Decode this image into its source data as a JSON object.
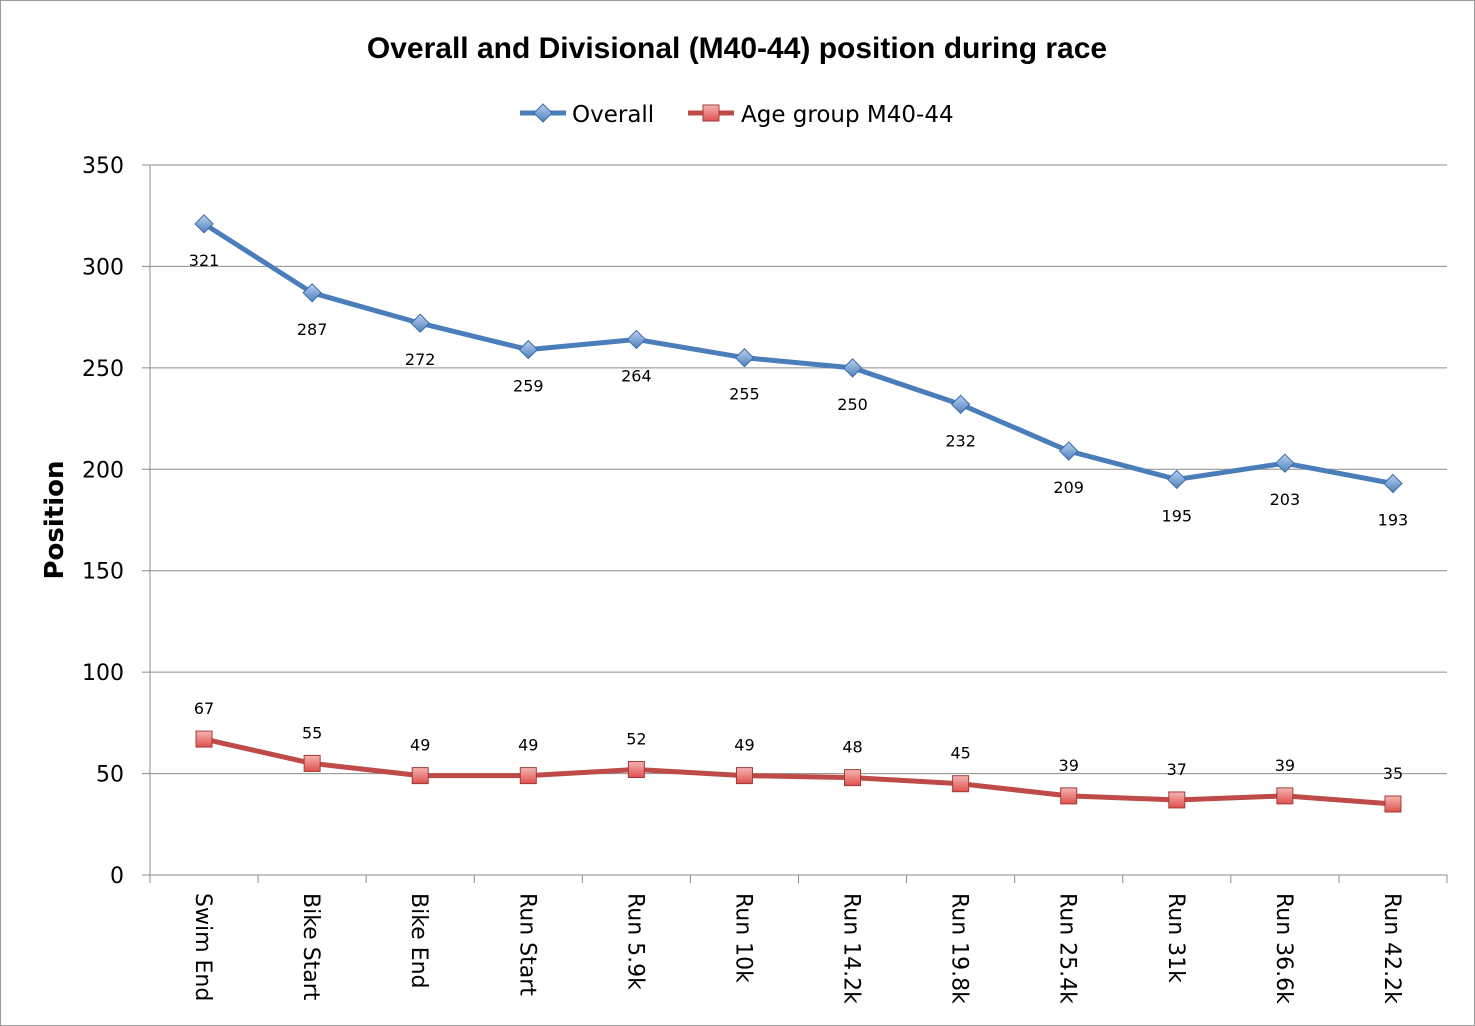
{
  "chart_data": {
    "type": "line",
    "title": "Overall and Divisional (M40-44) position during race",
    "xlabel": "",
    "ylabel": "Position",
    "ylim": [
      0,
      350
    ],
    "yticks": [
      0,
      50,
      100,
      150,
      200,
      250,
      300,
      350
    ],
    "grid": true,
    "legend_position": "top",
    "categories": [
      "Swim End",
      "Bike Start",
      "Bike End",
      "Run Start",
      "Run 5.9k",
      "Run 10k",
      "Run 14.2k",
      "Run 19.8k",
      "Run 25.4k",
      "Run 31k",
      "Run 36.6k",
      "Run 42.2k"
    ],
    "series": [
      {
        "name": "Overall",
        "color": "#4a7ebb",
        "marker": "diamond",
        "label_position": "below",
        "values": [
          321,
          287,
          272,
          259,
          264,
          255,
          250,
          232,
          209,
          195,
          203,
          193
        ]
      },
      {
        "name": "Age group M40-44",
        "color": "#be4b48",
        "marker": "square",
        "label_position": "above",
        "values": [
          67,
          55,
          49,
          49,
          52,
          49,
          48,
          45,
          39,
          37,
          39,
          35
        ]
      }
    ]
  }
}
